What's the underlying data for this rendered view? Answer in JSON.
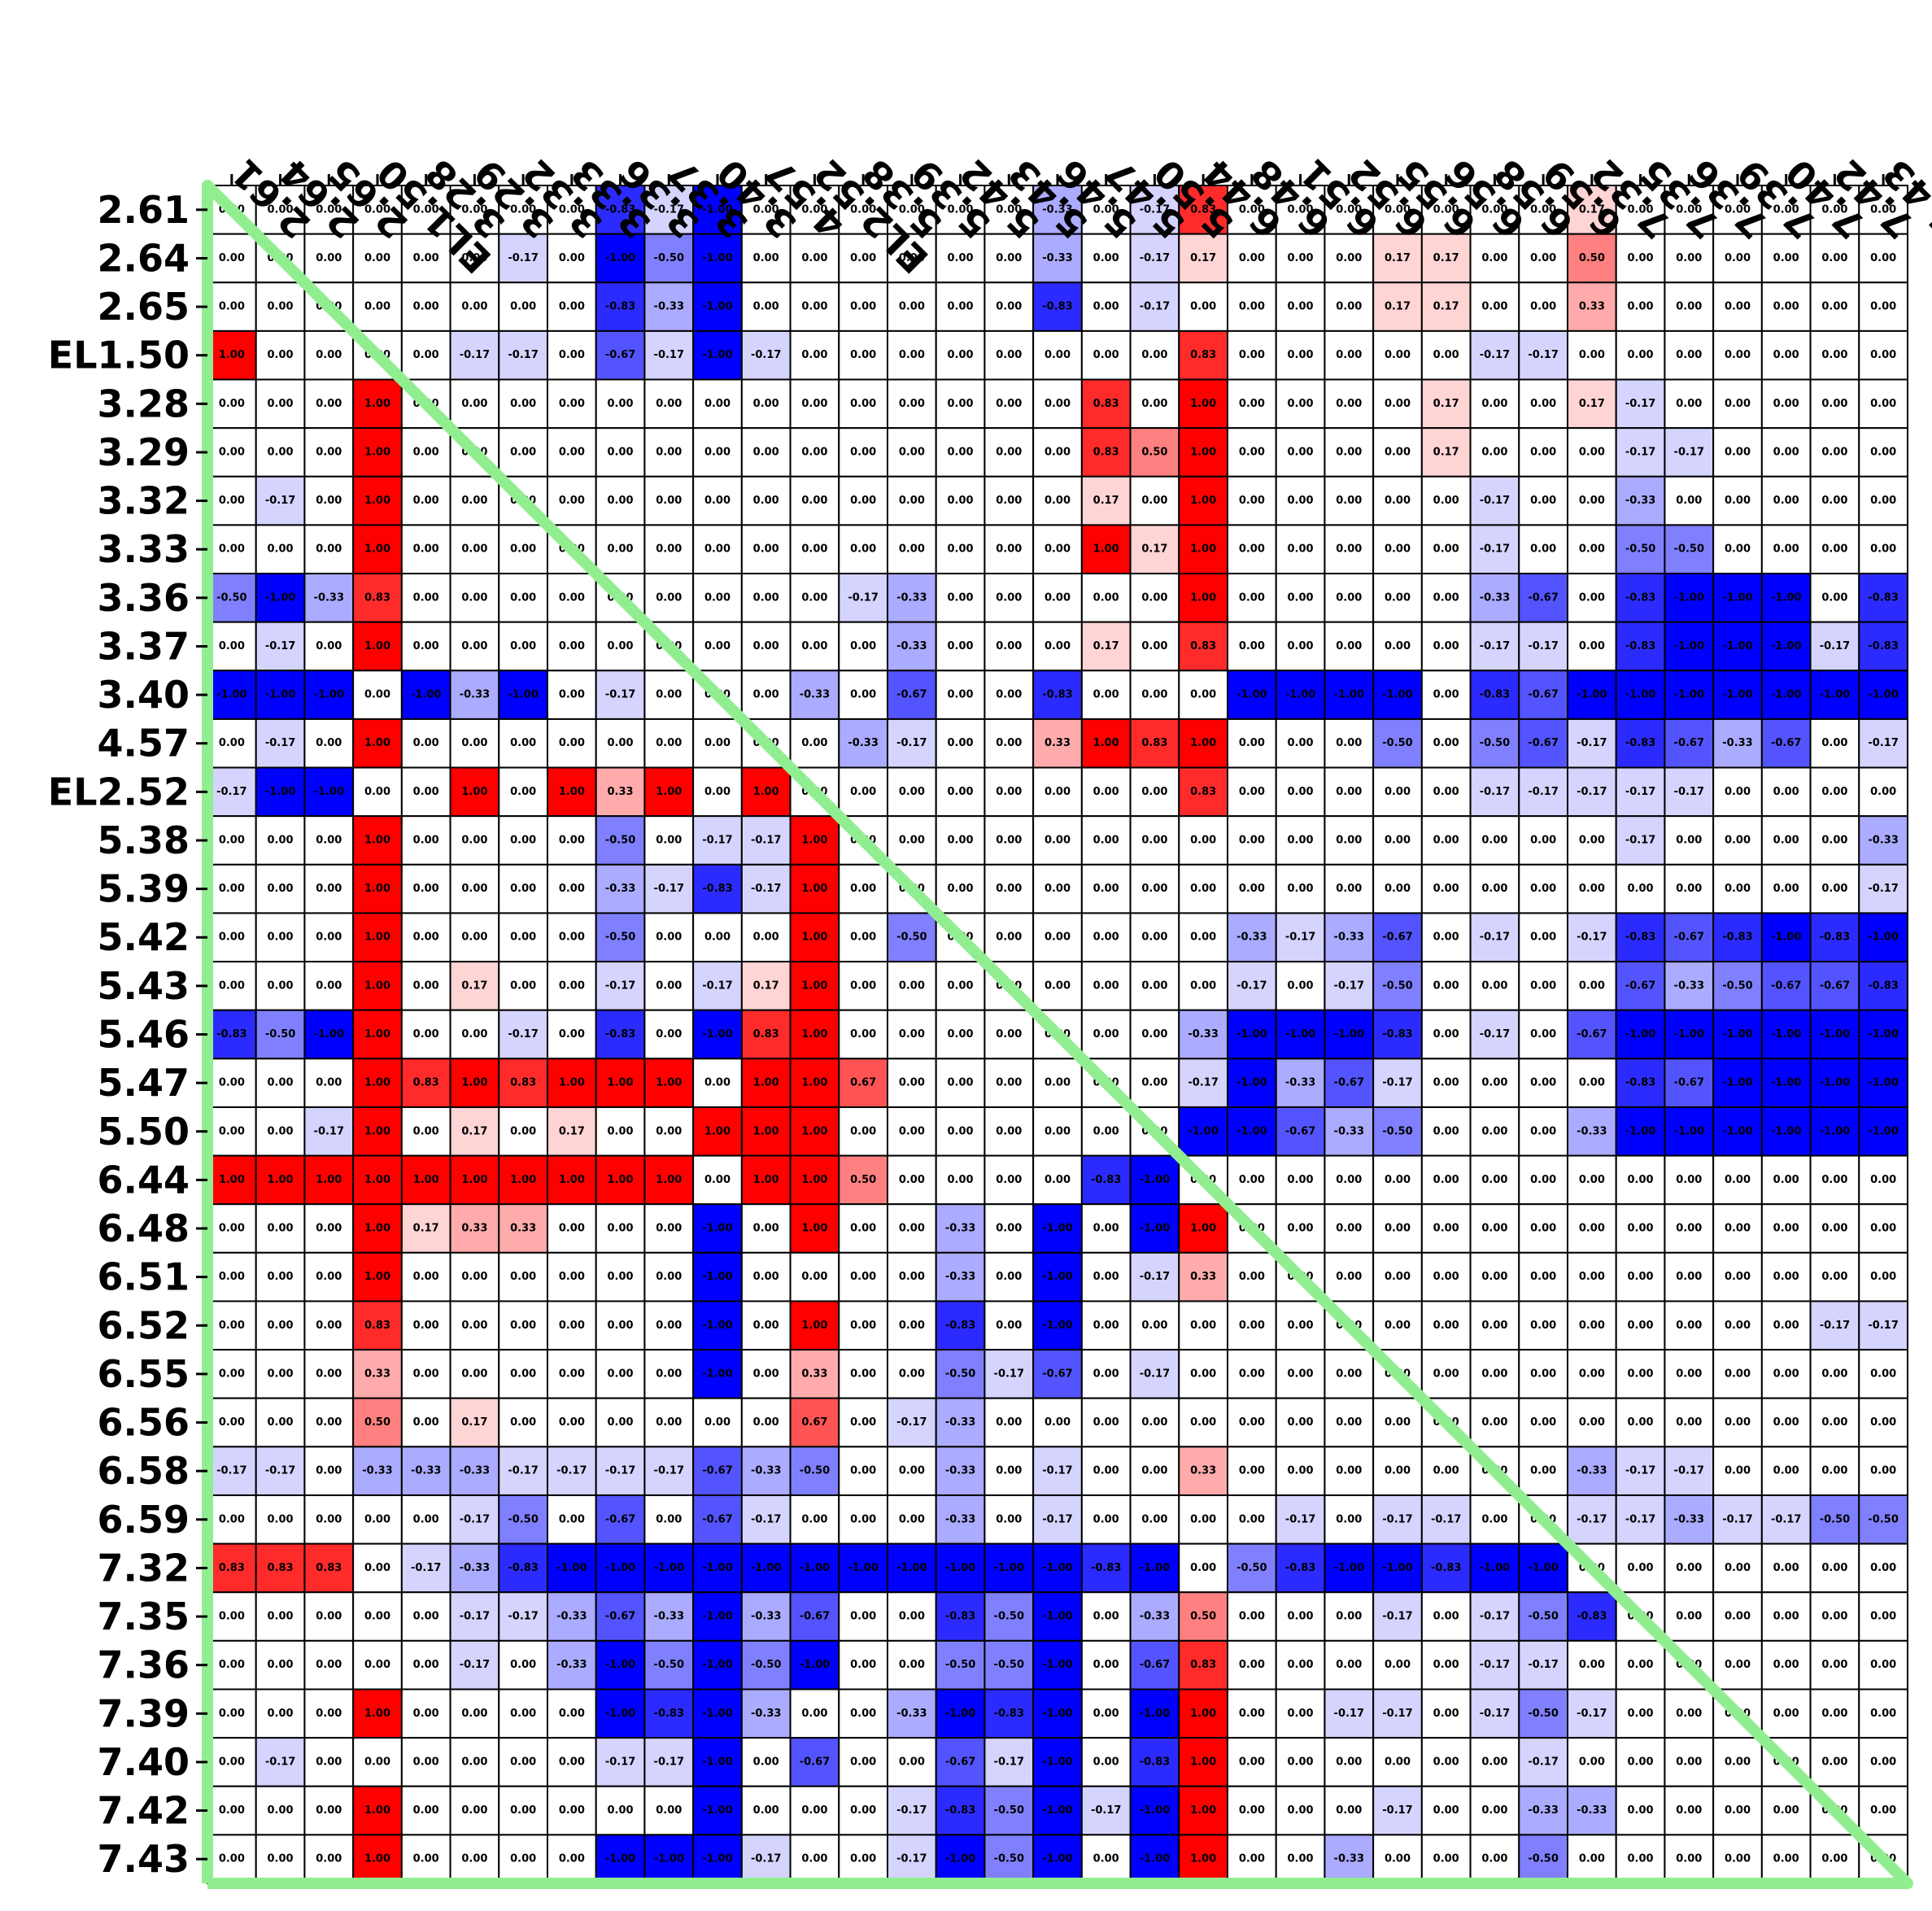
{
  "chart_data": {
    "type": "heatmap",
    "title": "",
    "xlabel": "",
    "ylabel": "",
    "labels": [
      "2.61",
      "2.64",
      "2.65",
      "EL1.50",
      "3.28",
      "3.29",
      "3.32",
      "3.33",
      "3.36",
      "3.37",
      "3.40",
      "4.57",
      "EL2.52",
      "5.38",
      "5.39",
      "5.42",
      "5.43",
      "5.46",
      "5.47",
      "5.50",
      "6.44",
      "6.48",
      "6.51",
      "6.52",
      "6.55",
      "6.56",
      "6.58",
      "6.59",
      "7.32",
      "7.35",
      "7.36",
      "7.39",
      "7.40",
      "7.42",
      "7.43"
    ],
    "value_range": [
      -1,
      1
    ],
    "colormap": "bwr (blue = -1, white = 0, red = +1)",
    "diagonal_line_color": "#90ee90",
    "frame_color": "#90ee90",
    "values": [
      [
        0.0,
        0.0,
        0.0,
        0.0,
        0.0,
        0.0,
        0.0,
        0.0,
        -0.83,
        -0.17,
        -1.0,
        0.0,
        0.0,
        0.0,
        0.0,
        0.0,
        0.0,
        -0.33,
        0.0,
        -0.17,
        0.83,
        0.0,
        0.0,
        0.0,
        0.0,
        0.0,
        0.0,
        0.0,
        0.17,
        0.0,
        0.0,
        0.0,
        0.0,
        0.0,
        0.0
      ],
      [
        0.0,
        0.0,
        0.0,
        0.0,
        0.0,
        0.0,
        -0.17,
        0.0,
        -1.0,
        -0.5,
        -1.0,
        0.0,
        0.0,
        0.0,
        0.0,
        0.0,
        0.0,
        -0.33,
        0.0,
        -0.17,
        0.17,
        0.0,
        0.0,
        0.0,
        0.17,
        0.17,
        0.0,
        0.0,
        0.5,
        0.0,
        0.0,
        0.0,
        0.0,
        0.0,
        0.0
      ],
      [
        0.0,
        0.0,
        0.0,
        0.0,
        0.0,
        0.0,
        0.0,
        0.0,
        -0.83,
        -0.33,
        -1.0,
        0.0,
        0.0,
        0.0,
        0.0,
        0.0,
        0.0,
        -0.83,
        0.0,
        -0.17,
        0.0,
        0.0,
        0.0,
        0.0,
        0.17,
        0.17,
        0.0,
        0.0,
        0.33,
        0.0,
        0.0,
        0.0,
        0.0,
        0.0,
        0.0
      ],
      [
        1.0,
        0.0,
        0.0,
        0.0,
        0.0,
        -0.17,
        -0.17,
        0.0,
        -0.67,
        -0.17,
        -1.0,
        -0.17,
        0.0,
        0.0,
        0.0,
        0.0,
        0.0,
        0.0,
        0.0,
        0.0,
        0.83,
        0.0,
        0.0,
        0.0,
        0.0,
        0.0,
        -0.17,
        -0.17,
        0.0,
        0.0,
        0.0,
        0.0,
        0.0,
        0.0,
        0.0
      ],
      [
        0.0,
        0.0,
        0.0,
        1.0,
        0.0,
        0.0,
        0.0,
        0.0,
        0.0,
        0.0,
        0.0,
        0.0,
        0.0,
        0.0,
        0.0,
        0.0,
        0.0,
        0.0,
        0.83,
        0.0,
        1.0,
        0.0,
        0.0,
        0.0,
        0.0,
        0.17,
        0.0,
        0.0,
        0.17,
        -0.17,
        0.0,
        0.0,
        0.0,
        0.0,
        0.0
      ],
      [
        0.0,
        0.0,
        0.0,
        1.0,
        0.0,
        0.0,
        0.0,
        0.0,
        0.0,
        0.0,
        0.0,
        0.0,
        0.0,
        0.0,
        0.0,
        0.0,
        0.0,
        0.0,
        0.83,
        0.5,
        1.0,
        0.0,
        0.0,
        0.0,
        0.0,
        0.17,
        0.0,
        0.0,
        0.0,
        -0.17,
        -0.17,
        0.0,
        0.0,
        0.0,
        0.0
      ],
      [
        0.0,
        -0.17,
        0.0,
        1.0,
        0.0,
        0.0,
        0.0,
        0.0,
        0.0,
        0.0,
        0.0,
        0.0,
        0.0,
        0.0,
        0.0,
        0.0,
        0.0,
        0.0,
        0.17,
        0.0,
        1.0,
        0.0,
        0.0,
        0.0,
        0.0,
        0.0,
        -0.17,
        0.0,
        0.0,
        -0.33,
        0.0,
        0.0,
        0.0,
        0.0,
        0.0
      ],
      [
        0.0,
        0.0,
        0.0,
        1.0,
        0.0,
        0.0,
        0.0,
        0.0,
        0.0,
        0.0,
        0.0,
        0.0,
        0.0,
        0.0,
        0.0,
        0.0,
        0.0,
        0.0,
        1.0,
        0.17,
        1.0,
        0.0,
        0.0,
        0.0,
        0.0,
        0.0,
        -0.17,
        0.0,
        0.0,
        -0.5,
        -0.5,
        0.0,
        0.0,
        0.0,
        0.0
      ],
      [
        -0.5,
        -1.0,
        -0.33,
        0.83,
        0.0,
        0.0,
        0.0,
        0.0,
        0.0,
        0.0,
        0.0,
        0.0,
        0.0,
        -0.17,
        -0.33,
        0.0,
        0.0,
        0.0,
        0.0,
        0.0,
        1.0,
        0.0,
        0.0,
        0.0,
        0.0,
        0.0,
        -0.33,
        -0.67,
        0.0,
        -0.83,
        -1.0,
        -1.0,
        -1.0,
        0.0,
        -0.83
      ],
      [
        0.0,
        -0.17,
        0.0,
        1.0,
        0.0,
        0.0,
        0.0,
        0.0,
        0.0,
        0.0,
        0.0,
        0.0,
        0.0,
        0.0,
        -0.33,
        0.0,
        0.0,
        0.0,
        0.17,
        0.0,
        0.83,
        0.0,
        0.0,
        0.0,
        0.0,
        0.0,
        -0.17,
        -0.17,
        0.0,
        -0.83,
        -1.0,
        -1.0,
        -1.0,
        -0.17,
        -0.83
      ],
      [
        -1.0,
        -1.0,
        -1.0,
        0.0,
        -1.0,
        -0.33,
        -1.0,
        0.0,
        -0.17,
        0.0,
        0.0,
        0.0,
        -0.33,
        0.0,
        -0.67,
        0.0,
        0.0,
        -0.83,
        0.0,
        0.0,
        0.0,
        -1.0,
        -1.0,
        -1.0,
        -1.0,
        0.0,
        -0.83,
        -0.67,
        -1.0,
        -1.0,
        -1.0,
        -1.0,
        -1.0,
        -1.0,
        -1.0
      ],
      [
        0.0,
        -0.17,
        0.0,
        1.0,
        0.0,
        0.0,
        0.0,
        0.0,
        0.0,
        0.0,
        0.0,
        0.0,
        0.0,
        -0.33,
        -0.17,
        0.0,
        0.0,
        0.33,
        1.0,
        0.83,
        1.0,
        0.0,
        0.0,
        0.0,
        -0.5,
        0.0,
        -0.5,
        -0.67,
        -0.17,
        -0.83,
        -0.67,
        -0.33,
        -0.67,
        0.0,
        -0.17
      ],
      [
        -0.17,
        -1.0,
        -1.0,
        0.0,
        0.0,
        1.0,
        0.0,
        1.0,
        0.33,
        1.0,
        0.0,
        1.0,
        0.0,
        0.0,
        0.0,
        0.0,
        0.0,
        0.0,
        0.0,
        0.0,
        0.83,
        0.0,
        0.0,
        0.0,
        0.0,
        0.0,
        -0.17,
        -0.17,
        -0.17,
        -0.17,
        -0.17,
        0.0,
        0.0,
        0.0,
        0.0
      ],
      [
        0.0,
        0.0,
        0.0,
        1.0,
        0.0,
        0.0,
        0.0,
        0.0,
        -0.5,
        0.0,
        -0.17,
        -0.17,
        1.0,
        0.0,
        0.0,
        0.0,
        0.0,
        0.0,
        0.0,
        0.0,
        0.0,
        0.0,
        0.0,
        0.0,
        0.0,
        0.0,
        0.0,
        0.0,
        0.0,
        -0.17,
        0.0,
        0.0,
        0.0,
        0.0,
        -0.33
      ],
      [
        0.0,
        0.0,
        0.0,
        1.0,
        0.0,
        0.0,
        0.0,
        0.0,
        -0.33,
        -0.17,
        -0.83,
        -0.17,
        1.0,
        0.0,
        0.0,
        0.0,
        0.0,
        0.0,
        0.0,
        0.0,
        0.0,
        0.0,
        0.0,
        0.0,
        0.0,
        0.0,
        0.0,
        0.0,
        0.0,
        0.0,
        0.0,
        0.0,
        0.0,
        0.0,
        -0.17
      ],
      [
        0.0,
        0.0,
        0.0,
        1.0,
        0.0,
        0.0,
        0.0,
        0.0,
        -0.5,
        0.0,
        0.0,
        0.0,
        1.0,
        0.0,
        -0.5,
        0.0,
        0.0,
        0.0,
        0.0,
        0.0,
        0.0,
        -0.33,
        -0.17,
        -0.33,
        -0.67,
        0.0,
        -0.17,
        0.0,
        -0.17,
        -0.83,
        -0.67,
        -0.83,
        -1.0,
        -0.83,
        -1.0
      ],
      [
        0.0,
        0.0,
        0.0,
        1.0,
        0.0,
        0.17,
        0.0,
        0.0,
        -0.17,
        0.0,
        -0.17,
        0.17,
        1.0,
        0.0,
        0.0,
        0.0,
        0.0,
        0.0,
        0.0,
        0.0,
        0.0,
        -0.17,
        0.0,
        -0.17,
        -0.5,
        0.0,
        0.0,
        0.0,
        0.0,
        -0.67,
        -0.33,
        -0.5,
        -0.67,
        -0.67,
        -0.83
      ],
      [
        -0.83,
        -0.5,
        -1.0,
        1.0,
        0.0,
        0.0,
        -0.17,
        0.0,
        -0.83,
        0.0,
        -1.0,
        0.83,
        1.0,
        0.0,
        0.0,
        0.0,
        0.0,
        0.0,
        0.0,
        0.0,
        -0.33,
        -1.0,
        -1.0,
        -1.0,
        -0.83,
        0.0,
        -0.17,
        0.0,
        -0.67,
        -1.0,
        -1.0,
        -1.0,
        -1.0,
        -1.0,
        -1.0
      ],
      [
        0.0,
        0.0,
        0.0,
        1.0,
        0.83,
        1.0,
        0.83,
        1.0,
        1.0,
        1.0,
        0.0,
        1.0,
        1.0,
        0.67,
        0.0,
        0.0,
        0.0,
        0.0,
        0.0,
        0.0,
        -0.17,
        -1.0,
        -0.33,
        -0.67,
        -0.17,
        0.0,
        0.0,
        0.0,
        0.0,
        -0.83,
        -0.67,
        -1.0,
        -1.0,
        -1.0,
        -1.0
      ],
      [
        0.0,
        0.0,
        -0.17,
        1.0,
        0.0,
        0.17,
        0.0,
        0.17,
        0.0,
        0.0,
        1.0,
        1.0,
        1.0,
        0.0,
        0.0,
        0.0,
        0.0,
        0.0,
        0.0,
        0.0,
        -1.0,
        -1.0,
        -0.67,
        -0.33,
        -0.5,
        0.0,
        0.0,
        0.0,
        -0.33,
        -1.0,
        -1.0,
        -1.0,
        -1.0,
        -1.0,
        -1.0
      ],
      [
        1.0,
        1.0,
        1.0,
        1.0,
        1.0,
        1.0,
        1.0,
        1.0,
        1.0,
        1.0,
        0.0,
        1.0,
        1.0,
        0.5,
        0.0,
        0.0,
        0.0,
        0.0,
        -0.83,
        -1.0,
        0.0,
        0.0,
        0.0,
        0.0,
        0.0,
        0.0,
        0.0,
        0.0,
        0.0,
        0.0,
        0.0,
        0.0,
        0.0,
        0.0,
        0.0
      ],
      [
        0.0,
        0.0,
        0.0,
        1.0,
        0.17,
        0.33,
        0.33,
        0.0,
        0.0,
        0.0,
        -1.0,
        0.0,
        1.0,
        0.0,
        0.0,
        -0.33,
        0.0,
        -1.0,
        0.0,
        -1.0,
        1.0,
        0.0,
        0.0,
        0.0,
        0.0,
        0.0,
        0.0,
        0.0,
        0.0,
        0.0,
        0.0,
        0.0,
        0.0,
        0.0,
        0.0
      ],
      [
        0.0,
        0.0,
        0.0,
        1.0,
        0.0,
        0.0,
        0.0,
        0.0,
        0.0,
        0.0,
        -1.0,
        0.0,
        0.0,
        0.0,
        0.0,
        -0.33,
        0.0,
        -1.0,
        0.0,
        -0.17,
        0.33,
        0.0,
        0.0,
        0.0,
        0.0,
        0.0,
        0.0,
        0.0,
        0.0,
        0.0,
        0.0,
        0.0,
        0.0,
        0.0,
        0.0
      ],
      [
        0.0,
        0.0,
        0.0,
        0.83,
        0.0,
        0.0,
        0.0,
        0.0,
        0.0,
        0.0,
        -1.0,
        0.0,
        1.0,
        0.0,
        0.0,
        -0.83,
        0.0,
        -1.0,
        0.0,
        0.0,
        0.0,
        0.0,
        0.0,
        0.0,
        0.0,
        0.0,
        0.0,
        0.0,
        0.0,
        0.0,
        0.0,
        0.0,
        0.0,
        -0.17,
        -0.17
      ],
      [
        0.0,
        0.0,
        0.0,
        0.33,
        0.0,
        0.0,
        0.0,
        0.0,
        0.0,
        0.0,
        -1.0,
        0.0,
        0.33,
        0.0,
        0.0,
        -0.5,
        -0.17,
        -0.67,
        0.0,
        -0.17,
        0.0,
        0.0,
        0.0,
        0.0,
        0.0,
        0.0,
        0.0,
        0.0,
        0.0,
        0.0,
        0.0,
        0.0,
        0.0,
        0.0,
        0.0
      ],
      [
        0.0,
        0.0,
        0.0,
        0.5,
        0.0,
        0.17,
        0.0,
        0.0,
        0.0,
        0.0,
        0.0,
        0.0,
        0.67,
        0.0,
        -0.17,
        -0.33,
        0.0,
        0.0,
        0.0,
        0.0,
        0.0,
        0.0,
        0.0,
        0.0,
        0.0,
        0.0,
        0.0,
        0.0,
        0.0,
        0.0,
        0.0,
        0.0,
        0.0,
        0.0,
        0.0
      ],
      [
        -0.17,
        -0.17,
        0.0,
        -0.33,
        -0.33,
        -0.33,
        -0.17,
        -0.17,
        -0.17,
        -0.17,
        -0.67,
        -0.33,
        -0.5,
        0.0,
        0.0,
        -0.33,
        0.0,
        -0.17,
        0.0,
        0.0,
        0.33,
        0.0,
        0.0,
        0.0,
        0.0,
        0.0,
        0.0,
        0.0,
        -0.33,
        -0.17,
        -0.17,
        0.0,
        0.0,
        0.0,
        0.0
      ],
      [
        0.0,
        0.0,
        0.0,
        0.0,
        0.0,
        -0.17,
        -0.5,
        0.0,
        -0.67,
        0.0,
        -0.67,
        -0.17,
        0.0,
        0.0,
        0.0,
        -0.33,
        0.0,
        -0.17,
        0.0,
        0.0,
        0.0,
        0.0,
        -0.17,
        0.0,
        -0.17,
        -0.17,
        0.0,
        0.0,
        -0.17,
        -0.17,
        -0.33,
        -0.17,
        -0.17,
        -0.5,
        -0.5
      ],
      [
        0.83,
        0.83,
        0.83,
        0.0,
        -0.17,
        -0.33,
        -0.83,
        -1.0,
        -1.0,
        -1.0,
        -1.0,
        -1.0,
        -1.0,
        -1.0,
        -1.0,
        -1.0,
        -1.0,
        -1.0,
        -0.83,
        -1.0,
        0.0,
        -0.5,
        -0.83,
        -1.0,
        -1.0,
        -0.83,
        -1.0,
        -1.0,
        0.0,
        0.0,
        0.0,
        0.0,
        0.0,
        0.0,
        0.0
      ],
      [
        0.0,
        0.0,
        0.0,
        0.0,
        0.0,
        -0.17,
        -0.17,
        -0.33,
        -0.67,
        -0.33,
        -1.0,
        -0.33,
        -0.67,
        0.0,
        0.0,
        -0.83,
        -0.5,
        -1.0,
        0.0,
        -0.33,
        0.5,
        0.0,
        0.0,
        0.0,
        -0.17,
        0.0,
        -0.17,
        -0.5,
        -0.83,
        0.0,
        0.0,
        0.0,
        0.0,
        0.0,
        0.0
      ],
      [
        0.0,
        0.0,
        0.0,
        0.0,
        0.0,
        -0.17,
        0.0,
        -0.33,
        -1.0,
        -0.5,
        -1.0,
        -0.5,
        -1.0,
        0.0,
        0.0,
        -0.5,
        -0.5,
        -1.0,
        0.0,
        -0.67,
        0.83,
        0.0,
        0.0,
        0.0,
        0.0,
        0.0,
        -0.17,
        -0.17,
        0.0,
        0.0,
        0.0,
        0.0,
        0.0,
        0.0,
        0.0
      ],
      [
        0.0,
        0.0,
        0.0,
        1.0,
        0.0,
        0.0,
        0.0,
        0.0,
        -1.0,
        -0.83,
        -1.0,
        -0.33,
        0.0,
        0.0,
        -0.33,
        -1.0,
        -0.83,
        -1.0,
        0.0,
        -1.0,
        1.0,
        0.0,
        0.0,
        -0.17,
        -0.17,
        0.0,
        -0.17,
        -0.5,
        -0.17,
        0.0,
        0.0,
        0.0,
        0.0,
        0.0,
        0.0
      ],
      [
        0.0,
        -0.17,
        0.0,
        0.0,
        0.0,
        0.0,
        0.0,
        0.0,
        -0.17,
        -0.17,
        -1.0,
        0.0,
        -0.67,
        0.0,
        0.0,
        -0.67,
        -0.17,
        -1.0,
        0.0,
        -0.83,
        1.0,
        0.0,
        0.0,
        0.0,
        0.0,
        0.0,
        0.0,
        -0.17,
        0.0,
        0.0,
        0.0,
        0.0,
        0.0,
        0.0,
        0.0
      ],
      [
        0.0,
        0.0,
        0.0,
        1.0,
        0.0,
        0.0,
        0.0,
        0.0,
        0.0,
        0.0,
        -1.0,
        0.0,
        0.0,
        0.0,
        -0.17,
        -0.83,
        -0.5,
        -1.0,
        -0.17,
        -1.0,
        1.0,
        0.0,
        0.0,
        0.0,
        -0.17,
        0.0,
        0.0,
        -0.33,
        -0.33,
        0.0,
        0.0,
        0.0,
        0.0,
        0.0,
        0.0
      ],
      [
        0.0,
        0.0,
        0.0,
        1.0,
        0.0,
        0.0,
        0.0,
        0.0,
        -1.0,
        -1.0,
        -1.0,
        -0.17,
        0.0,
        0.0,
        -0.17,
        -1.0,
        -0.5,
        -1.0,
        0.0,
        -1.0,
        1.0,
        0.0,
        0.0,
        -0.33,
        0.0,
        0.0,
        0.0,
        -0.5,
        0.0,
        0.0,
        0.0,
        0.0,
        0.0,
        0.0,
        0.0
      ]
    ]
  }
}
